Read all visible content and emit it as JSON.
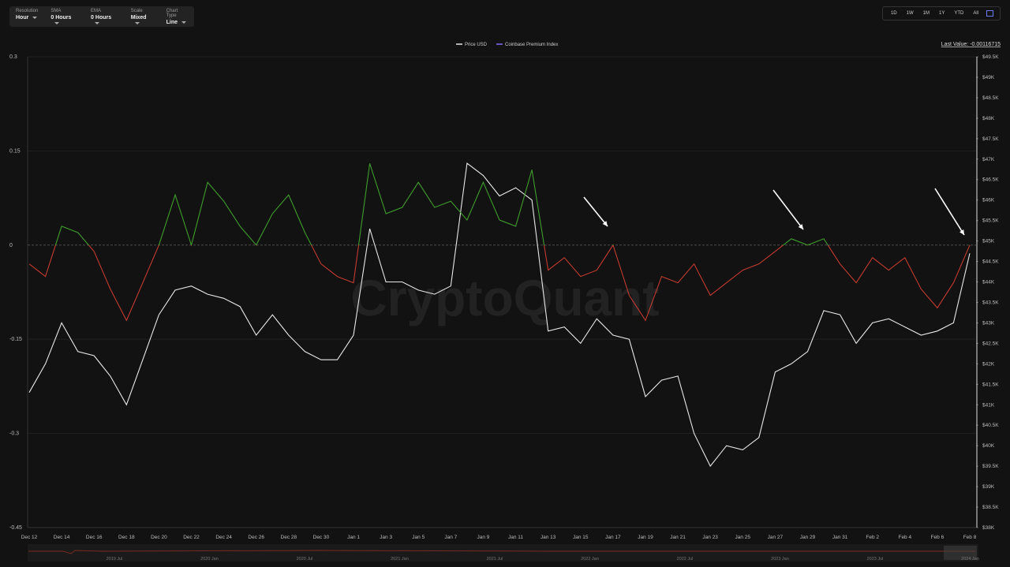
{
  "controls": [
    {
      "label": "Resolution",
      "value": "Hour"
    },
    {
      "label": "SMA",
      "value": "0 Hours"
    },
    {
      "label": "EMA",
      "value": "0 Hours"
    },
    {
      "label": "Scale",
      "value": "Mixed"
    },
    {
      "label": "Chart Type",
      "value": "Line"
    }
  ],
  "range_buttons": [
    "1D",
    "1W",
    "1M",
    "1Y",
    "YTD",
    "All"
  ],
  "last_value": "Last Value: -0.00116715",
  "watermark": "CryptoQuant",
  "navigator": {
    "labels": [
      "2019 Jul",
      "2020 Jan",
      "2020 Jul",
      "2021 Jan",
      "2021 Jul",
      "2022 Jan",
      "2022 Jul",
      "2023 Jan",
      "2023 Jul",
      "2024 Jan"
    ]
  },
  "chart_data": {
    "type": "line",
    "grid": true,
    "categories": [
      "Dec 12",
      null,
      "Dec 14",
      null,
      "Dec 16",
      null,
      "Dec 18",
      null,
      "Dec 20",
      null,
      "Dec 22",
      null,
      "Dec 24",
      null,
      "Dec 26",
      null,
      "Dec 28",
      null,
      "Dec 30",
      null,
      "Jan 1",
      null,
      "Jan 3",
      null,
      "Jan 5",
      null,
      "Jan 7",
      null,
      "Jan 9",
      null,
      "Jan 11",
      null,
      "Jan 13",
      null,
      "Jan 15",
      null,
      "Jan 17",
      null,
      "Jan 19",
      null,
      "Jan 21",
      null,
      "Jan 23",
      null,
      "Jan 25",
      null,
      "Jan 27",
      null,
      "Jan 29",
      null,
      "Jan 31",
      null,
      "Feb 2",
      null,
      "Feb 4",
      null,
      "Feb 6",
      null,
      "Feb 8"
    ],
    "ylim": [
      -0.45,
      0.3
    ],
    "yticks": [
      0.3,
      0.15,
      0,
      -0.15,
      -0.3,
      -0.45
    ],
    "y2lim": [
      38000,
      49500
    ],
    "y2ticks": [
      {
        "value": 49500,
        "label": "$49.5K"
      },
      {
        "value": 49000,
        "label": "$49K"
      },
      {
        "value": 48500,
        "label": "$48.5K"
      },
      {
        "value": 48000,
        "label": "$48K"
      },
      {
        "value": 47500,
        "label": "$47.5K"
      },
      {
        "value": 47000,
        "label": "$47K"
      },
      {
        "value": 46500,
        "label": "$46.5K"
      },
      {
        "value": 46000,
        "label": "$46K"
      },
      {
        "value": 45500,
        "label": "$45.5K"
      },
      {
        "value": 45000,
        "label": "$45K"
      },
      {
        "value": 44500,
        "label": "$44.5K"
      },
      {
        "value": 44000,
        "label": "$44K"
      },
      {
        "value": 43500,
        "label": "$43.5K"
      },
      {
        "value": 43000,
        "label": "$43K"
      },
      {
        "value": 42500,
        "label": "$42.5K"
      },
      {
        "value": 42000,
        "label": "$42K"
      },
      {
        "value": 41500,
        "label": "$41.5K"
      },
      {
        "value": 41000,
        "label": "$41K"
      },
      {
        "value": 40500,
        "label": "$40.5K"
      },
      {
        "value": 40000,
        "label": "$40K"
      },
      {
        "value": 39500,
        "label": "$39.5K"
      },
      {
        "value": 39000,
        "label": "$39K"
      },
      {
        "value": 38500,
        "label": "$38.5K"
      },
      {
        "value": 38000,
        "label": "$38K"
      }
    ],
    "series": [
      {
        "name": "Price USD",
        "color": "#e8e8e8",
        "axis": "y2",
        "values": [
          41300,
          42000,
          43000,
          42300,
          42200,
          41700,
          41000,
          42100,
          43200,
          43800,
          43900,
          43700,
          43600,
          43400,
          42700,
          43200,
          42700,
          42300,
          42100,
          42100,
          42700,
          45300,
          44000,
          44000,
          43800,
          43700,
          43900,
          46900,
          46600,
          46100,
          46300,
          46000,
          42800,
          42900,
          42500,
          43100,
          42700,
          42600,
          41200,
          41600,
          41700,
          40300,
          39500,
          40000,
          39900,
          40200,
          41800,
          42000,
          42300,
          43300,
          43200,
          42500,
          43000,
          43100,
          42900,
          42700,
          42800,
          43000,
          44700
        ]
      },
      {
        "name": "Coinbase Premium Index",
        "color": "#7b6cf0",
        "positive_color": "#3e9c2c",
        "negative_color": "#c23a2e",
        "values": [
          -0.03,
          -0.05,
          0.03,
          0.02,
          -0.01,
          -0.07,
          -0.12,
          -0.06,
          0.0,
          0.08,
          0.0,
          0.1,
          0.07,
          0.03,
          0.0,
          0.05,
          0.08,
          0.02,
          -0.03,
          -0.05,
          -0.06,
          0.13,
          0.05,
          0.06,
          0.1,
          0.06,
          0.07,
          0.04,
          0.1,
          0.04,
          0.03,
          0.12,
          -0.04,
          -0.02,
          -0.05,
          -0.04,
          0.0,
          -0.08,
          -0.12,
          -0.05,
          -0.06,
          -0.03,
          -0.08,
          -0.06,
          -0.04,
          -0.03,
          -0.01,
          0.01,
          0.0,
          0.01,
          -0.03,
          -0.06,
          -0.02,
          -0.04,
          -0.02,
          -0.07,
          -0.1,
          -0.06,
          0.0
        ]
      }
    ]
  }
}
